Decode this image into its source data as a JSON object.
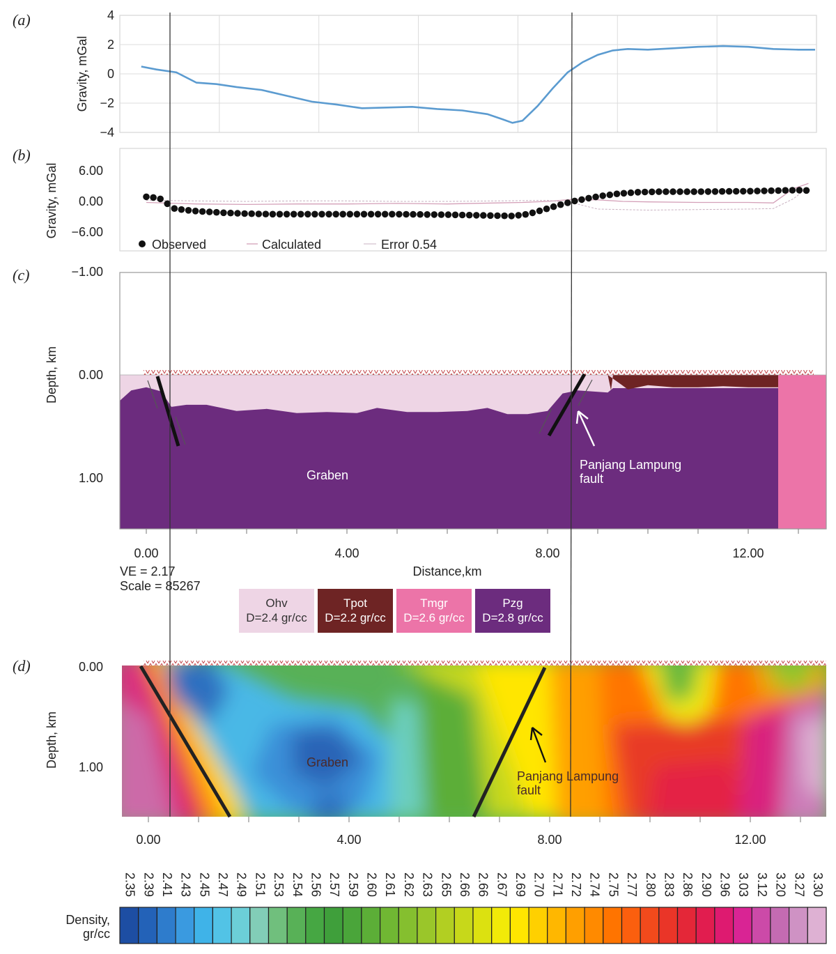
{
  "panels": {
    "a": {
      "label": "(a)",
      "ylabel": "Gravity, mGal",
      "yticks": [
        "4",
        "2",
        "0",
        "−2",
        "−4"
      ]
    },
    "b": {
      "label": "(b)",
      "ylabel": "Gravity, mGal",
      "yticks": [
        "6.00",
        "0.00",
        "−6.00"
      ],
      "legend": {
        "observed": "Observed",
        "calculated": "Calculated",
        "error": "Error 0.54"
      }
    },
    "c": {
      "label": "(c)",
      "ylabel": "Depth, km",
      "yticks": [
        "−1.00",
        "0.00",
        "1.00"
      ],
      "xticks": [
        "0.00",
        "4.00",
        "8.00",
        "12.00"
      ],
      "xlabel": "Distance,km",
      "ve": "VE = 2.17",
      "scale": "Scale = 85267",
      "graben": "Graben",
      "fault": [
        "Panjang Lampung",
        "fault"
      ]
    },
    "d": {
      "label": "(d)",
      "ylabel": "Depth, km",
      "yticks": [
        "0.00",
        "1.00"
      ],
      "xticks": [
        "0.00",
        "4.00",
        "8.00",
        "12.00"
      ],
      "graben": "Graben",
      "fault": [
        "Panjang Lampung",
        "fault"
      ]
    }
  },
  "units": [
    {
      "name": "Ohv",
      "density": "D=2.4 gr/cc",
      "color": "#eed5e5"
    },
    {
      "name": "Tpot",
      "density": "D=2.2 gr/cc",
      "color": "#6e2424"
    },
    {
      "name": "Tmgr",
      "density": "D=2.6 gr/cc",
      "color": "#ec74a8"
    },
    {
      "name": "Pzg",
      "density": "D=2.8 gr/cc",
      "color": "#6c2c7e"
    }
  ],
  "colorbar": {
    "label": [
      "Density,",
      "gr/cc"
    ],
    "values": [
      "2.35",
      "2.39",
      "2.41",
      "2.43",
      "2.45",
      "2.47",
      "2.49",
      "2.51",
      "2.53",
      "2.54",
      "2.56",
      "2.57",
      "2.59",
      "2.60",
      "2.61",
      "2.62",
      "2.63",
      "2.65",
      "2.66",
      "2.66",
      "2.67",
      "2.69",
      "2.70",
      "2.71",
      "2.72",
      "2.74",
      "2.75",
      "2.77",
      "2.80",
      "2.83",
      "2.86",
      "2.90",
      "2.96",
      "3.03",
      "3.12",
      "3.20",
      "3.27",
      "3.30"
    ],
    "colors": [
      "#1d4ea3",
      "#2362b8",
      "#2e7ccc",
      "#3a9ae0",
      "#3fb3e8",
      "#52c3e6",
      "#6ccfd8",
      "#82cdb7",
      "#70bf7d",
      "#58b157",
      "#46a743",
      "#3f9f3b",
      "#4aa53a",
      "#5cae37",
      "#70b733",
      "#85bf2f",
      "#9ac62a",
      "#b2cf22",
      "#c7d81a",
      "#dce110",
      "#f2ea08",
      "#ffe600",
      "#ffd000",
      "#ffb700",
      "#ff9f00",
      "#ff8a00",
      "#ff7400",
      "#fb5f0e",
      "#f24a1c",
      "#ea3528",
      "#e42738",
      "#e11d4f",
      "#de1a70",
      "#d92494",
      "#cc4aa8",
      "#c46bb2",
      "#cf92c4",
      "#deb1d3"
    ]
  },
  "chart_data": [
    {
      "type": "line",
      "title": "",
      "xlabel": "",
      "ylabel": "Gravity, mGal",
      "xlim": [
        -0.6,
        13.5
      ],
      "ylim": [
        -4,
        4
      ],
      "series": [
        {
          "name": "",
          "x": [
            -0.1,
            0.2,
            0.6,
            1.0,
            1.4,
            1.8,
            2.3,
            2.8,
            3.3,
            3.8,
            4.3,
            4.8,
            5.3,
            5.8,
            6.3,
            6.8,
            7.1,
            7.3,
            7.5,
            7.8,
            8.1,
            8.4,
            8.7,
            9.0,
            9.3,
            9.6,
            10.0,
            10.5,
            11.0,
            11.5,
            12.0,
            12.5,
            13.0,
            13.5
          ],
          "y": [
            0.5,
            0.3,
            0.1,
            -0.6,
            -0.7,
            -0.9,
            -1.1,
            -1.5,
            -1.9,
            -2.1,
            -2.35,
            -2.3,
            -2.25,
            -2.4,
            -2.5,
            -2.75,
            -3.1,
            -3.35,
            -3.2,
            -2.2,
            -1.0,
            0.1,
            0.8,
            1.3,
            1.6,
            1.7,
            1.65,
            1.75,
            1.85,
            1.9,
            1.85,
            1.7,
            1.65,
            1.65
          ]
        }
      ]
    },
    {
      "type": "line",
      "title": "",
      "xlabel": "",
      "ylabel": "Gravity, mGal",
      "xlim": [
        -0.6,
        13.5
      ],
      "ylim": [
        -10,
        10
      ],
      "series": [
        {
          "name": "Observed",
          "x": [
            0,
            0.2,
            0.35,
            0.5,
            0.7,
            1.0,
            1.5,
            2.0,
            2.5,
            3.0,
            3.5,
            4.0,
            4.5,
            5.0,
            5.5,
            6.0,
            6.5,
            7.0,
            7.3,
            7.6,
            7.9,
            8.2,
            8.5,
            8.8,
            9.1,
            9.4,
            9.8,
            10.2,
            10.6,
            11.0,
            11.5,
            12.0,
            12.5,
            13.0,
            13.3
          ],
          "y": [
            0.9,
            0.7,
            0.3,
            -1.3,
            -1.6,
            -1.9,
            -2.2,
            -2.4,
            -2.5,
            -2.5,
            -2.5,
            -2.5,
            -2.5,
            -2.5,
            -2.55,
            -2.6,
            -2.7,
            -2.8,
            -2.85,
            -2.5,
            -1.7,
            -0.8,
            0.0,
            0.6,
            1.1,
            1.5,
            1.8,
            1.9,
            1.9,
            1.9,
            1.95,
            2.0,
            2.1,
            2.2,
            2.1
          ]
        },
        {
          "name": "Calculated",
          "x": [
            0,
            1,
            2,
            3,
            4,
            5,
            6,
            7,
            7.5,
            8,
            8.5,
            9,
            9.5,
            10,
            11,
            12,
            12.5,
            12.9,
            13.2
          ],
          "y": [
            -0.2,
            -0.5,
            -0.6,
            -0.5,
            -0.5,
            -0.4,
            -0.5,
            -0.3,
            -0.2,
            0,
            0.4,
            0.3,
            0.0,
            -0.1,
            -0.2,
            -0.2,
            -0.3,
            2.5,
            3.5
          ]
        },
        {
          "name": "Error 0.54",
          "x": [
            0,
            1,
            2,
            3,
            4,
            5,
            6,
            7,
            8,
            8.5,
            9,
            10,
            11,
            12,
            12.5,
            12.9,
            13.2
          ],
          "y": [
            0.2,
            0.1,
            0.0,
            0.1,
            0.1,
            0.0,
            0.0,
            0.1,
            0.2,
            -0.3,
            -1.5,
            -1.7,
            -1.6,
            -1.5,
            -1.4,
            0.5,
            2.8
          ]
        }
      ]
    },
    {
      "type": "area",
      "title": "",
      "xlabel": "Distance,km",
      "ylabel": "Depth, km",
      "xlim": [
        -0.55,
        13.55
      ],
      "ylim": [
        -1.0,
        1.5
      ],
      "series": [
        {
          "name": "Pzg top",
          "x": [
            -0.55,
            -0.3,
            0.0,
            0.3,
            0.5,
            0.8,
            1.2,
            1.8,
            2.4,
            3.0,
            3.6,
            4.2,
            4.6,
            5.2,
            5.8,
            6.4,
            6.8,
            7.2,
            7.6,
            8.0,
            8.3,
            8.6,
            9.2
          ],
          "y": [
            0.25,
            0.15,
            0.12,
            0.16,
            0.31,
            0.29,
            0.29,
            0.35,
            0.33,
            0.37,
            0.36,
            0.37,
            0.32,
            0.36,
            0.36,
            0.35,
            0.32,
            0.38,
            0.38,
            0.35,
            0.18,
            0.15,
            0.17
          ]
        },
        {
          "name": "Tpot",
          "x": [
            9.2,
            9.6,
            10.0,
            10.5,
            11.0,
            11.5,
            12.0,
            12.6
          ],
          "y": [
            0.0,
            0.14,
            0.1,
            0.12,
            0.12,
            0.11,
            0.12,
            0.12
          ]
        }
      ]
    },
    {
      "type": "heatmap",
      "title": "",
      "xlabel": "",
      "ylabel": "Depth, km",
      "xlim": [
        -0.5,
        13.5
      ],
      "ylim": [
        0,
        1.5
      ]
    }
  ]
}
